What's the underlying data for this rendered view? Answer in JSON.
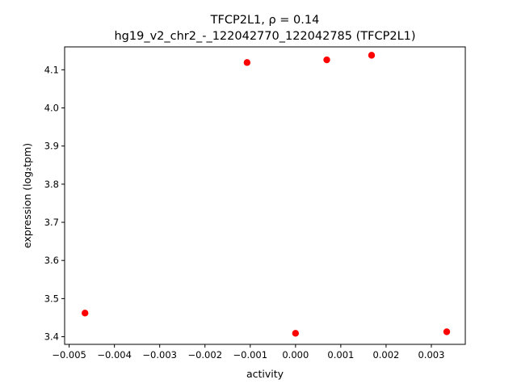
{
  "chart_data": {
    "type": "scatter",
    "title_line1": "TFCP2L1, ρ = 0.14",
    "title_line2": "hg19_v2_chr2_-_122042770_122042785 (TFCP2L1)",
    "xlabel": "activity",
    "ylabel": "expression (log₂tpm)",
    "xlim": [
      -0.0051,
      0.00375
    ],
    "ylim": [
      3.38,
      4.16
    ],
    "xticks": [
      -0.005,
      -0.004,
      -0.003,
      -0.002,
      -0.001,
      0.0,
      0.001,
      0.002,
      0.003
    ],
    "xtick_labels": [
      "−0.005",
      "−0.004",
      "−0.003",
      "−0.002",
      "−0.001",
      "0.000",
      "0.001",
      "0.002",
      "0.003"
    ],
    "yticks": [
      3.4,
      3.5,
      3.6,
      3.7,
      3.8,
      3.9,
      4.0,
      4.1
    ],
    "ytick_labels": [
      "3.4",
      "3.5",
      "3.6",
      "3.7",
      "3.8",
      "3.9",
      "4.0",
      "4.1"
    ],
    "marker_color": "#ff0000",
    "grid": false,
    "points": [
      {
        "x": -0.00465,
        "y": 3.462
      },
      {
        "x": -0.00107,
        "y": 4.119
      },
      {
        "x": 0.0,
        "y": 3.409
      },
      {
        "x": 0.00069,
        "y": 4.126
      },
      {
        "x": 0.00168,
        "y": 4.138
      },
      {
        "x": 0.00334,
        "y": 3.413
      }
    ]
  }
}
